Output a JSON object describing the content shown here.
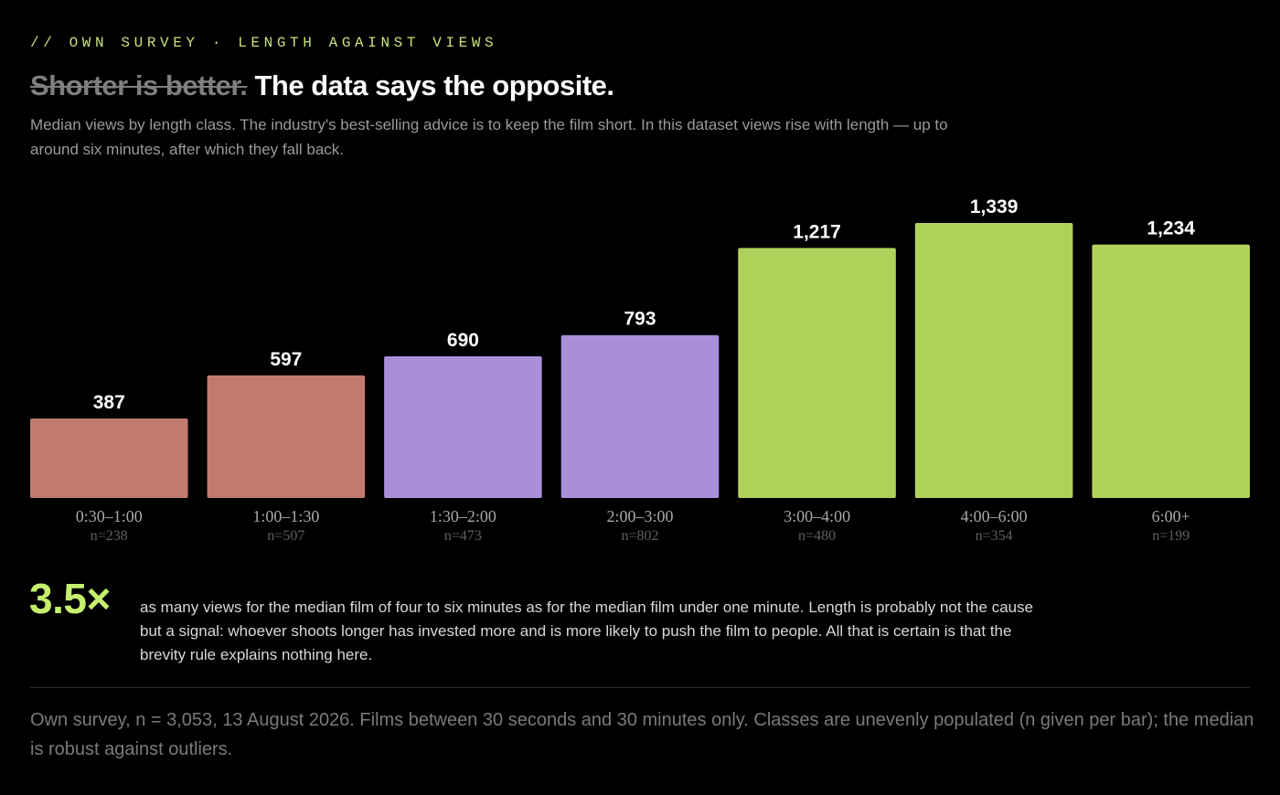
{
  "header": {
    "kicker": "// OWN SURVEY · LENGTH AGAINST VIEWS",
    "headline_struck": "Shorter is better.",
    "headline_main": "The data says the opposite.",
    "subtitle": "Median views by length class. The industry's best-selling advice is to keep the film short. In this dataset views rise with length — up to around six minutes, after which they fall back."
  },
  "chart_data": {
    "type": "bar",
    "title": "",
    "xlabel": "",
    "ylabel": "",
    "ylim": [
      0,
      1339
    ],
    "grid": false,
    "categories": [
      "0:30–1:00",
      "1:00–1:30",
      "1:30–2:00",
      "2:00–3:00",
      "3:00–4:00",
      "4:00–6:00",
      "6:00+"
    ],
    "values": [
      387,
      597,
      690,
      793,
      1217,
      1339,
      1234
    ],
    "value_labels": [
      "387",
      "597",
      "690",
      "793",
      "1,217",
      "1,339",
      "1,234"
    ],
    "sample_sizes": [
      "n=238",
      "n=507",
      "n=473",
      "n=802",
      "n=480",
      "n=354",
      "n=199"
    ],
    "bar_colors": [
      "#c17b6e",
      "#c17b6e",
      "#a98fd8",
      "#a98fd8",
      "#b0d159",
      "#b0d159",
      "#b0d159"
    ]
  },
  "callout": {
    "number": "3.5×",
    "text": "as many views for the median film of four to six minutes as for the median film under one minute. Length is probably not the cause but a signal: whoever shoots longer has invested more and is more likely to push the film to people. All that is certain is that the brevity rule explains nothing here."
  },
  "footnote": "Own survey, n = 3,053, 13 August 2026. Films between 30 seconds and 30 minutes only. Classes are unevenly populated (n given per bar); the median is robust against outliers.",
  "colors": {
    "background": "#000000",
    "accent": "#c6ef6e",
    "kicker": "#c7e27a"
  }
}
